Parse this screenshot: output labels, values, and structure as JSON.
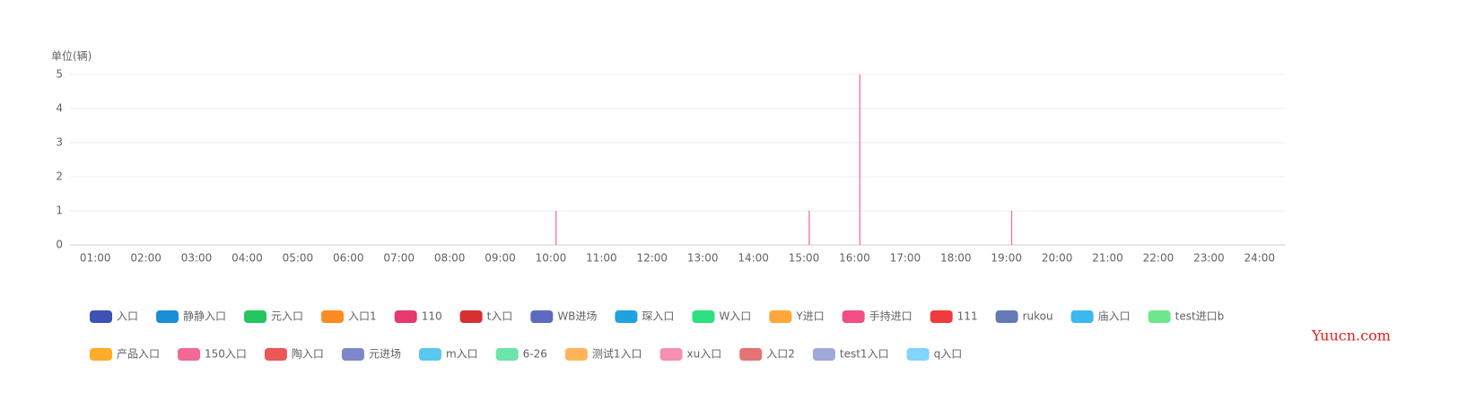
{
  "chart_data": {
    "type": "bar",
    "unit_label": "单位(辆)",
    "watermark": "Yuucn.com",
    "categories": [
      "01:00",
      "02:00",
      "03:00",
      "04:00",
      "05:00",
      "06:00",
      "07:00",
      "08:00",
      "09:00",
      "10:00",
      "11:00",
      "12:00",
      "13:00",
      "14:00",
      "15:00",
      "16:00",
      "17:00",
      "18:00",
      "19:00",
      "20:00",
      "21:00",
      "22:00",
      "23:00",
      "24:00"
    ],
    "ylim": [
      0,
      5
    ],
    "yticks": [
      0,
      1,
      2,
      3,
      4,
      5
    ],
    "grid": true,
    "legend": "bottom",
    "series": [
      {
        "name": "入口",
        "color": "#3f51b5",
        "values": [
          0,
          0,
          0,
          0,
          0,
          0,
          0,
          0,
          0,
          0,
          0,
          0,
          0,
          0,
          0,
          0,
          0,
          0,
          0,
          0,
          0,
          0,
          0,
          0
        ]
      },
      {
        "name": "静静入口",
        "color": "#1a8fd6",
        "values": [
          0,
          0,
          0,
          0,
          0,
          0,
          0,
          0,
          0,
          0,
          0,
          0,
          0,
          0,
          0,
          0,
          0,
          0,
          0,
          0,
          0,
          0,
          0,
          0
        ]
      },
      {
        "name": "元入口",
        "color": "#22c55e",
        "values": [
          0,
          0,
          0,
          0,
          0,
          0,
          0,
          0,
          0,
          0,
          0,
          0,
          0,
          0,
          0,
          0,
          0,
          0,
          0,
          0,
          0,
          0,
          0,
          0
        ]
      },
      {
        "name": "入口1",
        "color": "#fb8c22",
        "values": [
          0,
          0,
          0,
          0,
          0,
          0,
          0,
          0,
          0,
          0,
          0,
          0,
          0,
          0,
          0,
          0,
          0,
          0,
          0,
          0,
          0,
          0,
          0,
          0
        ]
      },
      {
        "name": "110",
        "color": "#e6396f",
        "values": [
          0,
          0,
          0,
          0,
          0,
          0,
          0,
          0,
          0,
          0,
          0,
          0,
          0,
          0,
          0,
          0,
          0,
          0,
          0,
          0,
          0,
          0,
          0,
          0
        ]
      },
      {
        "name": "t入口",
        "color": "#d63031",
        "values": [
          0,
          0,
          0,
          0,
          0,
          0,
          0,
          0,
          0,
          0,
          0,
          0,
          0,
          0,
          0,
          0,
          0,
          0,
          0,
          0,
          0,
          0,
          0,
          0
        ]
      },
      {
        "name": "WB进场",
        "color": "#5c6bc0",
        "values": [
          0,
          0,
          0,
          0,
          0,
          0,
          0,
          0,
          0,
          0,
          0,
          0,
          0,
          0,
          0,
          0,
          0,
          0,
          0,
          0,
          0,
          0,
          0,
          0
        ]
      },
      {
        "name": "琛入口",
        "color": "#1fa2e0",
        "values": [
          0,
          0,
          0,
          0,
          0,
          0,
          0,
          0,
          0,
          0,
          0,
          0,
          0,
          0,
          0,
          0,
          0,
          0,
          0,
          0,
          0,
          0,
          0,
          0
        ]
      },
      {
        "name": "W入口",
        "color": "#2de07f",
        "values": [
          0,
          0,
          0,
          0,
          0,
          0,
          0,
          0,
          0,
          0,
          0,
          0,
          0,
          0,
          0,
          0,
          0,
          0,
          0,
          0,
          0,
          0,
          0,
          0
        ]
      },
      {
        "name": "Y进口",
        "color": "#ffa63a",
        "values": [
          0,
          0,
          0,
          0,
          0,
          0,
          0,
          0,
          0,
          0,
          0,
          0,
          0,
          0,
          0,
          0,
          0,
          0,
          0,
          0,
          0,
          0,
          0,
          0
        ]
      },
      {
        "name": "手持进口",
        "color": "#f24e86",
        "values": [
          0,
          0,
          0,
          0,
          0,
          0,
          0,
          0,
          0,
          0,
          0,
          0,
          0,
          0,
          0,
          0,
          0,
          0,
          0,
          0,
          0,
          0,
          0,
          0
        ]
      },
      {
        "name": "111",
        "color": "#ef3b3b",
        "values": [
          0,
          0,
          0,
          0,
          0,
          0,
          0,
          0,
          0,
          0,
          0,
          0,
          0,
          0,
          0,
          0,
          0,
          0,
          0,
          0,
          0,
          0,
          0,
          0
        ]
      },
      {
        "name": "rukou",
        "color": "#6479b5",
        "values": [
          0,
          0,
          0,
          0,
          0,
          0,
          0,
          0,
          0,
          0,
          0,
          0,
          0,
          0,
          0,
          0,
          0,
          0,
          0,
          0,
          0,
          0,
          0,
          0
        ]
      },
      {
        "name": "庙入口",
        "color": "#3bb8f0",
        "values": [
          0,
          0,
          0,
          0,
          0,
          0,
          0,
          0,
          0,
          0,
          0,
          0,
          0,
          0,
          0,
          0,
          0,
          0,
          0,
          0,
          0,
          0,
          0,
          0
        ]
      },
      {
        "name": "test进口b",
        "color": "#6ee68e",
        "values": [
          0,
          0,
          0,
          0,
          0,
          0,
          0,
          0,
          0,
          0,
          0,
          0,
          0,
          0,
          0,
          0,
          0,
          0,
          0,
          0,
          0,
          0,
          0,
          0
        ]
      },
      {
        "name": "产品入口",
        "color": "#ffac29",
        "values": [
          0,
          0,
          0,
          0,
          0,
          0,
          0,
          0,
          0,
          0,
          0,
          0,
          0,
          0,
          0,
          0,
          0,
          0,
          0,
          0,
          0,
          0,
          0,
          0
        ]
      },
      {
        "name": "150入口",
        "color": "#f26a93",
        "values": [
          0,
          0,
          0,
          0,
          0,
          0,
          0,
          0,
          0,
          1,
          0,
          0,
          0,
          0,
          1,
          5,
          0,
          0,
          1,
          0,
          0,
          0,
          0,
          0
        ]
      },
      {
        "name": "陶入口",
        "color": "#ec5757",
        "values": [
          0,
          0,
          0,
          0,
          0,
          0,
          0,
          0,
          0,
          0,
          0,
          0,
          0,
          0,
          0,
          0,
          0,
          0,
          0,
          0,
          0,
          0,
          0,
          0
        ]
      },
      {
        "name": "元进场",
        "color": "#7d88c9",
        "values": [
          0,
          0,
          0,
          0,
          0,
          0,
          0,
          0,
          0,
          0,
          0,
          0,
          0,
          0,
          0,
          0,
          0,
          0,
          0,
          0,
          0,
          0,
          0,
          0
        ]
      },
      {
        "name": "m入口",
        "color": "#5ac8ee",
        "values": [
          0,
          0,
          0,
          0,
          0,
          0,
          0,
          0,
          0,
          0,
          0,
          0,
          0,
          0,
          0,
          0,
          0,
          0,
          0,
          0,
          0,
          0,
          0,
          0
        ]
      },
      {
        "name": "6-26",
        "color": "#6ce3aa",
        "values": [
          0,
          0,
          0,
          0,
          0,
          0,
          0,
          0,
          0,
          0,
          0,
          0,
          0,
          0,
          0,
          0,
          0,
          0,
          0,
          0,
          0,
          0,
          0,
          0
        ]
      },
      {
        "name": "测试1入口",
        "color": "#ffb45c",
        "values": [
          0,
          0,
          0,
          0,
          0,
          0,
          0,
          0,
          0,
          0,
          0,
          0,
          0,
          0,
          0,
          0,
          0,
          0,
          0,
          0,
          0,
          0,
          0,
          0
        ]
      },
      {
        "name": "xu入口",
        "color": "#f48fb1",
        "values": [
          0,
          0,
          0,
          0,
          0,
          0,
          0,
          0,
          0,
          0,
          0,
          0,
          0,
          0,
          0,
          0,
          0,
          0,
          0,
          0,
          0,
          0,
          0,
          0
        ]
      },
      {
        "name": "入口2",
        "color": "#e57373",
        "values": [
          0,
          0,
          0,
          0,
          0,
          0,
          0,
          0,
          0,
          0,
          0,
          0,
          0,
          0,
          0,
          0,
          0,
          0,
          0,
          0,
          0,
          0,
          0,
          0
        ]
      },
      {
        "name": "test1入口",
        "color": "#9fa8da",
        "values": [
          0,
          0,
          0,
          0,
          0,
          0,
          0,
          0,
          0,
          0,
          0,
          0,
          0,
          0,
          0,
          0,
          0,
          0,
          0,
          0,
          0,
          0,
          0,
          0
        ]
      },
      {
        "name": "q入口",
        "color": "#81d4fa",
        "values": [
          0,
          0,
          0,
          0,
          0,
          0,
          0,
          0,
          0,
          0,
          0,
          0,
          0,
          0,
          0,
          0,
          0,
          0,
          0,
          0,
          0,
          0,
          0,
          0
        ]
      }
    ]
  }
}
